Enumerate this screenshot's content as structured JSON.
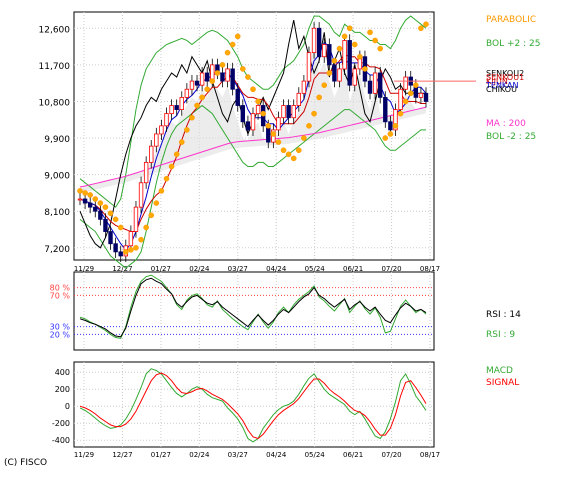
{
  "copyright": "(C) FISCO",
  "chart_data": [
    {
      "type": "candlestick",
      "panel": "price",
      "y_ticks": [
        "12,600",
        "11,700",
        "10,800",
        "9,900",
        "9,000",
        "8,100",
        "7,200"
      ],
      "y_tick_values": [
        12600,
        11700,
        10800,
        9900,
        9000,
        8100,
        7200
      ],
      "ylim": [
        6900,
        13000
      ],
      "x_ticks": [
        "11/29",
        "12/27",
        "01/27",
        "02/24",
        "03/27",
        "04/24",
        "05/24",
        "06/21",
        "07/20",
        "08/17"
      ],
      "legend": [
        {
          "label": "PARABOLIC",
          "color": "#ff9900"
        },
        {
          "label": "BOL +2 : 25",
          "color": "#33aa33"
        },
        {
          "label": "MA : 200",
          "color": "#ff33cc"
        },
        {
          "label": "BOL -2 : 25",
          "color": "#33aa33"
        }
      ],
      "overlap_labels": [
        "SENKOU2",
        "SENKOU1",
        "KIJUN",
        "TENKAN",
        "CHIKOU"
      ],
      "close": [
        8400,
        8300,
        8200,
        8100,
        7900,
        7600,
        7300,
        7100,
        7000,
        7250,
        7600,
        8200,
        8800,
        9300,
        9700,
        10000,
        10200,
        10500,
        10700,
        10600,
        10900,
        11100,
        11300,
        11200,
        11500,
        11300,
        11700,
        11500,
        11300,
        11600,
        11100,
        10700,
        10300,
        10100,
        10500,
        10700,
        10200,
        9800,
        10100,
        10400,
        10700,
        10400,
        10700,
        11000,
        11300,
        12000,
        12600,
        11900,
        12200,
        11700,
        11300,
        11600,
        12300,
        11200,
        11600,
        11900,
        11300,
        11000,
        11500,
        10900,
        10300,
        10100,
        10600,
        11100,
        11400,
        11200,
        10900,
        11000,
        10800
      ],
      "parabolic": [
        8600,
        8550,
        8500,
        8400,
        8300,
        8200,
        8050,
        7900,
        7700,
        7100,
        7150,
        7200,
        7400,
        7700,
        8000,
        8300,
        8600,
        8900,
        9200,
        9500,
        9800,
        10100,
        10400,
        10700,
        10900,
        11100,
        11300,
        11500,
        11700,
        12000,
        12200,
        12400,
        11600,
        11400,
        11100,
        10800,
        10500,
        10200,
        10000,
        9800,
        9600,
        9500,
        9400,
        9600,
        9900,
        10200,
        10500,
        10900,
        11200,
        11500,
        11800,
        12100,
        12400,
        12600,
        12200,
        11900,
        11600,
        12500,
        12300,
        12100,
        9900,
        10000,
        10200,
        10500,
        10800,
        11000,
        11200,
        12600,
        12700
      ],
      "ma200": [
        8700,
        8720,
        8750,
        8780,
        8810,
        8840,
        8870,
        8900,
        8930,
        8960,
        9000,
        9040,
        9080,
        9120,
        9160,
        9200,
        9240,
        9280,
        9320,
        9360,
        9400,
        9440,
        9480,
        9520,
        9560,
        9600,
        9640,
        9680,
        9720,
        9760,
        9790,
        9810,
        9820,
        9830,
        9840,
        9850,
        9860,
        9870,
        9880,
        9890,
        9900,
        9910,
        9930,
        9950,
        9970,
        9990,
        10010,
        10030,
        10060,
        10090,
        10120,
        10150,
        10180,
        10210,
        10240,
        10270,
        10300,
        10330,
        10360,
        10390,
        10420,
        10450,
        10480,
        10510,
        10540,
        10570,
        10600,
        10630,
        10660
      ],
      "bol_upper": [
        8900,
        8800,
        8700,
        8600,
        8500,
        8400,
        8300,
        8200,
        8400,
        9000,
        9800,
        10600,
        11200,
        11600,
        11800,
        12000,
        12100,
        12200,
        12250,
        12300,
        12350,
        12300,
        12200,
        12300,
        12400,
        12500,
        12550,
        12500,
        12400,
        12300,
        12100,
        11900,
        11600,
        11400,
        11300,
        11200,
        11100,
        11100,
        11200,
        11400,
        11600,
        11700,
        11800,
        12000,
        12200,
        12600,
        12900,
        12900,
        12800,
        12700,
        12500,
        12400,
        12700,
        12600,
        12500,
        12500,
        12400,
        12300,
        12300,
        12200,
        12200,
        12100,
        12300,
        12600,
        12800,
        12900,
        12800,
        12700,
        12600
      ],
      "bol_lower": [
        7900,
        7800,
        7700,
        7600,
        7400,
        7200,
        7000,
        6900,
        6800,
        6700,
        6800,
        6900,
        7100,
        7600,
        8200,
        8800,
        9300,
        9700,
        10000,
        10200,
        10300,
        10400,
        10500,
        10600,
        10700,
        10600,
        10500,
        10300,
        10100,
        9900,
        9700,
        9500,
        9300,
        9200,
        9200,
        9300,
        9300,
        9200,
        9200,
        9300,
        9400,
        9500,
        9600,
        9700,
        9800,
        9900,
        10000,
        10100,
        10200,
        10300,
        10400,
        10500,
        10600,
        10600,
        10500,
        10400,
        10300,
        10200,
        10100,
        9900,
        9700,
        9600,
        9600,
        9700,
        9800,
        9900,
        10000,
        10100,
        10100
      ]
    },
    {
      "type": "line",
      "panel": "RSI",
      "y_ticks": [
        "80 %",
        "70 %",
        "30 %",
        "20 %"
      ],
      "y_tick_values": [
        80,
        70,
        30,
        20
      ],
      "ylim": [
        0,
        100
      ],
      "legend": [
        {
          "label": "RSI : 14",
          "color": "#000000"
        },
        {
          "label": "RSI : 9",
          "color": "#33aa33"
        }
      ],
      "series": [
        {
          "name": "RSI : 14",
          "values": [
            40,
            38,
            35,
            33,
            30,
            27,
            22,
            18,
            17,
            28,
            50,
            70,
            85,
            90,
            92,
            88,
            85,
            78,
            72,
            60,
            55,
            62,
            68,
            70,
            65,
            60,
            58,
            62,
            55,
            50,
            45,
            40,
            35,
            30,
            38,
            45,
            38,
            32,
            38,
            46,
            52,
            48,
            55,
            62,
            68,
            72,
            80,
            70,
            66,
            60,
            55,
            60,
            65,
            52,
            58,
            62,
            55,
            50,
            55,
            46,
            38,
            35,
            45,
            54,
            60,
            56,
            50,
            52,
            48
          ]
        },
        {
          "name": "RSI : 9",
          "values": [
            42,
            40,
            36,
            33,
            29,
            25,
            20,
            16,
            15,
            30,
            55,
            75,
            88,
            94,
            96,
            92,
            88,
            80,
            72,
            58,
            52,
            64,
            70,
            72,
            66,
            58,
            55,
            63,
            52,
            46,
            40,
            35,
            30,
            26,
            36,
            46,
            36,
            28,
            36,
            48,
            55,
            48,
            58,
            65,
            70,
            75,
            82,
            68,
            63,
            56,
            50,
            58,
            66,
            48,
            56,
            63,
            53,
            46,
            54,
            42,
            22,
            24,
            40,
            56,
            64,
            56,
            48,
            52,
            46
          ]
        }
      ]
    },
    {
      "type": "line",
      "panel": "MACD",
      "y_ticks": [
        "400",
        "200",
        "0",
        "-200",
        "-400"
      ],
      "y_tick_values": [
        400,
        200,
        0,
        -200,
        -400
      ],
      "ylim": [
        -480,
        520
      ],
      "legend": [
        {
          "label": "MACD",
          "color": "#33aa33"
        },
        {
          "label": "SIGNAL",
          "color": "#ff0000"
        }
      ],
      "series": [
        {
          "name": "MACD",
          "values": [
            -20,
            -50,
            -90,
            -140,
            -190,
            -230,
            -260,
            -250,
            -220,
            -150,
            -50,
            80,
            220,
            380,
            440,
            420,
            380,
            300,
            220,
            150,
            110,
            150,
            200,
            230,
            200,
            140,
            100,
            80,
            60,
            -20,
            -80,
            -150,
            -250,
            -380,
            -420,
            -380,
            -260,
            -180,
            -100,
            -40,
            0,
            20,
            60,
            140,
            240,
            330,
            380,
            290,
            200,
            140,
            100,
            60,
            20,
            -60,
            -100,
            -60,
            -150,
            -250,
            -350,
            -380,
            -300,
            -150,
            50,
            300,
            380,
            260,
            120,
            40,
            -50
          ]
        },
        {
          "name": "SIGNAL",
          "values": [
            0,
            -20,
            -50,
            -90,
            -140,
            -180,
            -220,
            -240,
            -240,
            -210,
            -150,
            -60,
            60,
            180,
            300,
            370,
            390,
            360,
            300,
            220,
            160,
            150,
            170,
            200,
            210,
            180,
            140,
            110,
            80,
            30,
            -30,
            -90,
            -170,
            -280,
            -360,
            -380,
            -330,
            -250,
            -170,
            -100,
            -50,
            -10,
            30,
            90,
            170,
            250,
            320,
            320,
            270,
            200,
            150,
            110,
            60,
            0,
            -50,
            -70,
            -110,
            -180,
            -270,
            -340,
            -340,
            -260,
            -100,
            120,
            280,
            300,
            220,
            130,
            30
          ]
        }
      ]
    }
  ]
}
